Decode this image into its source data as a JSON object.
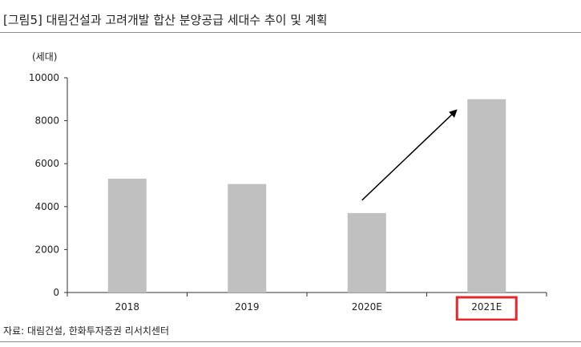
{
  "figure": {
    "title": "[그림5]    대림건설과 고려개발 합산 분양공급 세대수 추이 및 계획",
    "unit": "(세대)",
    "source": "자료: 대림건설, 한화투자증권 리서치센터"
  },
  "chart_data": {
    "type": "bar",
    "categories": [
      "2018",
      "2019",
      "2020E",
      "2021E"
    ],
    "values": [
      5300,
      5050,
      3700,
      9000
    ],
    "ylim": [
      0,
      10000
    ],
    "yticks": [
      0,
      2000,
      4000,
      6000,
      8000,
      10000
    ],
    "xlabel": "",
    "ylabel": "(세대)",
    "grid": false,
    "legend": "none",
    "bar_color": "#c0c0c0",
    "highlight_category": "2021E",
    "highlight_color": "#e8262b",
    "arrow": {
      "from_category": "2020E",
      "to_category": "2021E",
      "shape": "upward-arrow"
    }
  }
}
